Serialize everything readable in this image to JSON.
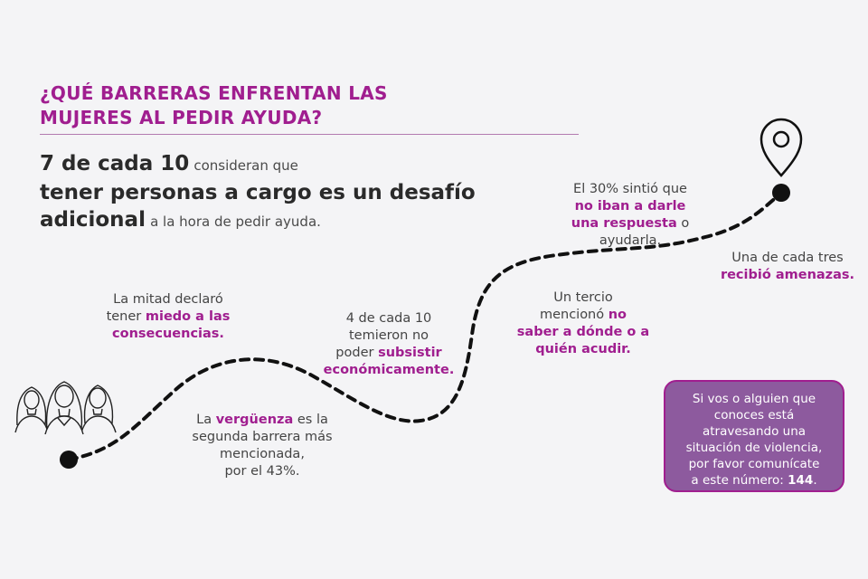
{
  "title": {
    "line1": "¿QUÉ BARRERAS ENFRENTAN LAS",
    "line2": "MUJERES AL PEDIR AYUDA?"
  },
  "headline": {
    "stat": "7 de cada 10",
    "after_stat": "consideran que",
    "main_line1": "tener personas a cargo es un desafío",
    "main_line2": "adicional",
    "tail": "a la hora de pedir ayuda."
  },
  "notes": {
    "mitad": {
      "line1": "La mitad declaró",
      "line2_pre": "tener",
      "line2_hl": "miedo a las",
      "line3_hl": "consecuencias."
    },
    "verguenza": {
      "line1_pre": "La",
      "line1_hl": "vergüenza",
      "line1_post": "es la",
      "line2": "segunda barrera más",
      "line3": "mencionada,",
      "line4": "por el 43%."
    },
    "subsistir": {
      "line1": "4 de cada 10",
      "line2": "temieron no",
      "line3_pre": "poder",
      "line3_hl": "subsistir",
      "line4_hl": "económicamente."
    },
    "tercio": {
      "line1": "Un tercio",
      "line2_pre": "mencionó",
      "line2_hl": "no",
      "line3_hl": "saber a dónde o a",
      "line4_hl": "quién acudir."
    },
    "respuesta": {
      "line1": "El 30% sintió que",
      "line2_hl": "no iban a darle",
      "line3_hl": "una respuesta",
      "line3_post": "o",
      "line4": "ayudarla."
    },
    "amenazas": {
      "line1": "Una de cada tres",
      "line2_hl": "recibió amenazas."
    }
  },
  "callout": {
    "line1": "Si vos o alguien que",
    "line2": "conoces está",
    "line3": "atravesando una",
    "line4": "situación de violencia,",
    "line5": "por favor comunícate",
    "line6_pre": "a este número:",
    "number": "144",
    "line6_post": "."
  },
  "colors": {
    "accent": "#a01e8f",
    "callout_bg": "#8d5a9e",
    "background": "#f4f4f6",
    "path": "#111111"
  },
  "icons": [
    "women-group-icon",
    "location-pin-icon"
  ]
}
